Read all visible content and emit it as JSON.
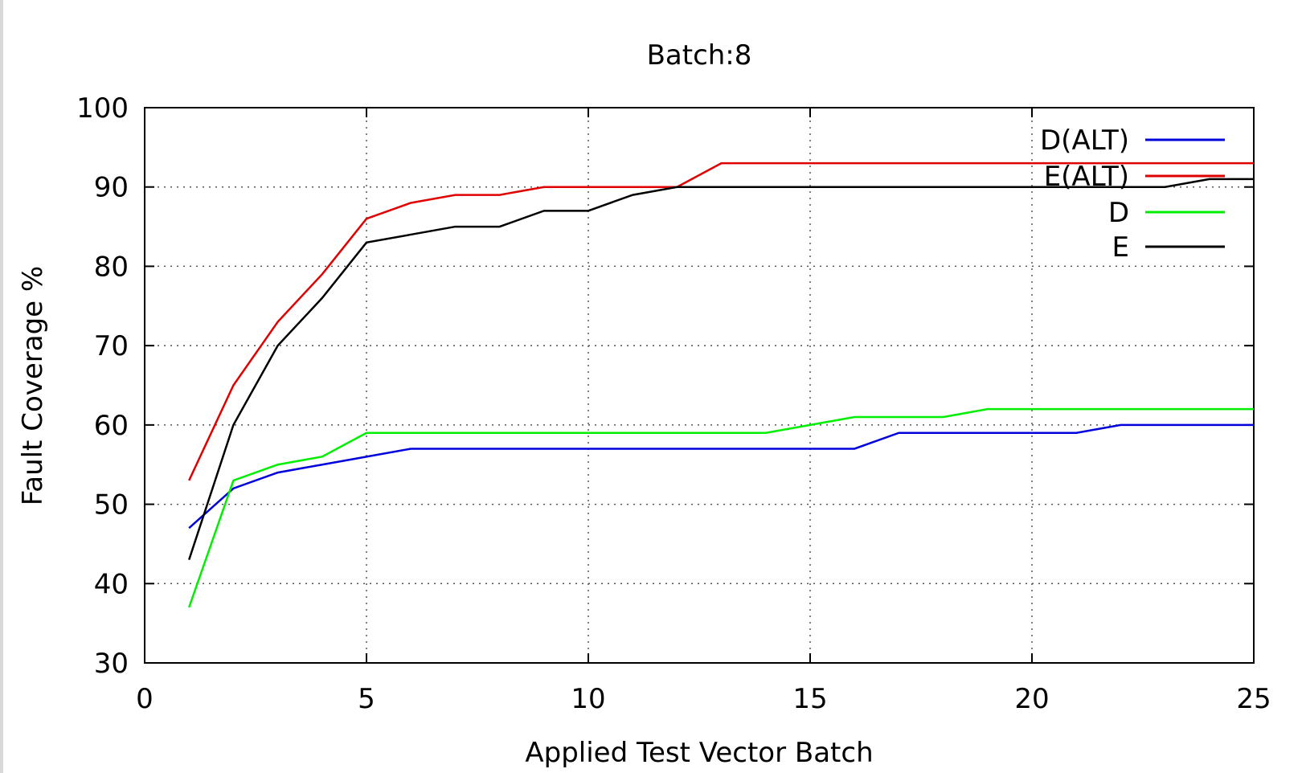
{
  "chart_data": {
    "type": "line",
    "title": "Batch:8",
    "xlabel": "Applied Test Vector Batch",
    "ylabel": "Fault Coverage %",
    "xlim": [
      0,
      25
    ],
    "ylim": [
      30,
      100
    ],
    "xticks": [
      0,
      5,
      10,
      15,
      20,
      25
    ],
    "yticks": [
      30,
      40,
      50,
      60,
      70,
      80,
      90,
      100
    ],
    "grid": true,
    "legend_position": "top-right",
    "x": [
      1,
      2,
      3,
      4,
      5,
      6,
      7,
      8,
      9,
      10,
      11,
      12,
      13,
      14,
      15,
      16,
      17,
      18,
      19,
      20,
      21,
      22,
      23,
      24,
      25
    ],
    "series": [
      {
        "name": "D(ALT)",
        "color": "#0000dd",
        "values": [
          47,
          52,
          54,
          55,
          56,
          57,
          57,
          57,
          57,
          57,
          57,
          57,
          57,
          57,
          57,
          57,
          59,
          59,
          59,
          59,
          59,
          60,
          60,
          60,
          60
        ]
      },
      {
        "name": "E(ALT)",
        "color": "#e00000",
        "values": [
          53,
          65,
          73,
          79,
          86,
          88,
          89,
          89,
          90,
          90,
          90,
          90,
          93,
          93,
          93,
          93,
          93,
          93,
          93,
          93,
          93,
          93,
          93,
          93,
          93
        ]
      },
      {
        "name": "D",
        "color": "#00ee00",
        "values": [
          37,
          53,
          55,
          56,
          59,
          59,
          59,
          59,
          59,
          59,
          59,
          59,
          59,
          59,
          60,
          61,
          61,
          61,
          62,
          62,
          62,
          62,
          62,
          62,
          62
        ]
      },
      {
        "name": "E",
        "color": "#000000",
        "values": [
          43,
          60,
          70,
          76,
          83,
          84,
          85,
          85,
          87,
          87,
          89,
          90,
          90,
          90,
          90,
          90,
          90,
          90,
          90,
          90,
          90,
          90,
          90,
          91,
          91
        ]
      }
    ]
  }
}
